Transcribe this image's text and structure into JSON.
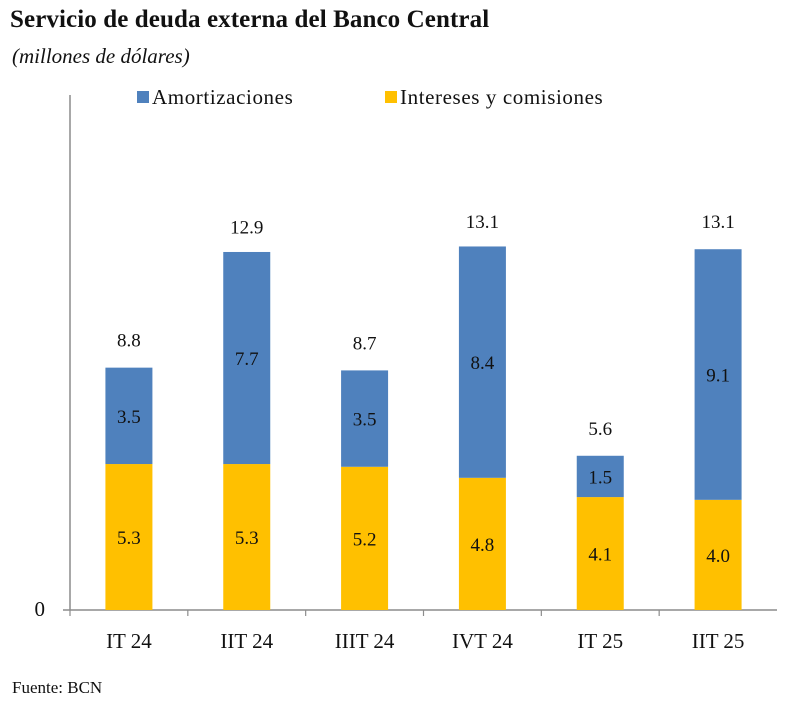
{
  "chart_data": {
    "type": "bar",
    "stacked": true,
    "title": "Servicio de deuda externa del Banco Central",
    "subtitle": "(millones de dólares)",
    "source": "Fuente: BCN",
    "xlabel": "",
    "ylabel": "",
    "ylim": [
      0,
      18.7
    ],
    "y_ticks": [
      "0"
    ],
    "grid": false,
    "legend_position": "top",
    "categories": [
      "IT 24",
      "IIT 24",
      "IIIT 24",
      "IVT 24",
      "IT 25",
      "IIT 25"
    ],
    "series": [
      {
        "name": "Intereses y comisiones",
        "color": "#FFC000",
        "values": [
          5.3,
          5.3,
          5.2,
          4.8,
          4.1,
          4.0
        ]
      },
      {
        "name": "Amortizaciones",
        "color": "#4F81BD",
        "values": [
          3.5,
          7.7,
          3.5,
          8.4,
          1.5,
          9.1
        ]
      }
    ],
    "totals": [
      8.8,
      12.9,
      8.7,
      13.1,
      5.6,
      13.1
    ],
    "legend_order": [
      "Amortizaciones",
      "Intereses y comisiones"
    ]
  }
}
